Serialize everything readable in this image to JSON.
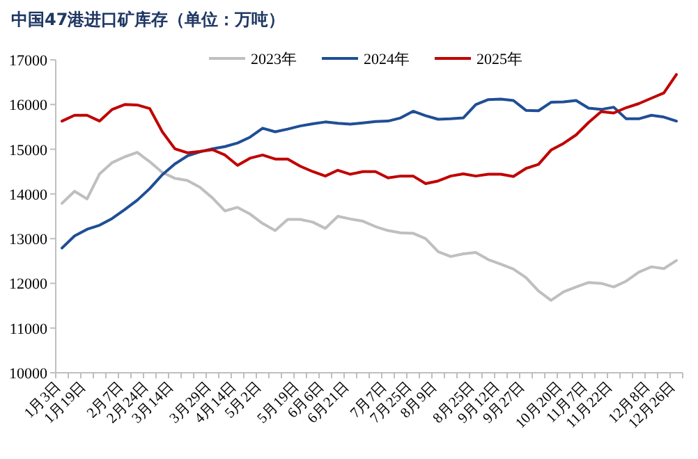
{
  "chart_data": {
    "type": "line",
    "title": "中国47港进口矿库存（单位：万吨）",
    "categories": [
      "1月3日",
      null,
      "1月19日",
      null,
      null,
      "2月7日",
      null,
      "2月24日",
      null,
      "3月14日",
      null,
      null,
      "3月29日",
      null,
      "4月14日",
      null,
      "5月2日",
      null,
      null,
      "5月19日",
      null,
      "6月6日",
      null,
      "6月21日",
      null,
      null,
      "7月7日",
      null,
      "7月25日",
      null,
      "8月9日",
      null,
      null,
      "8月25日",
      null,
      "9月12日",
      null,
      "9月27日",
      null,
      null,
      "10月20日",
      null,
      "11月7日",
      null,
      "11月22日",
      null,
      null,
      "12月8日",
      null,
      "12月26日"
    ],
    "series": [
      {
        "name": "2023年",
        "color": "#bfbfbf",
        "values": [
          13790,
          14060,
          13890,
          14450,
          14700,
          14830,
          14930,
          14720,
          14480,
          14350,
          14300,
          14150,
          13910,
          13620,
          13700,
          13550,
          13340,
          13180,
          13430,
          13430,
          13370,
          13230,
          13500,
          13440,
          13390,
          13270,
          13180,
          13130,
          13120,
          13000,
          12710,
          12600,
          12660,
          12690,
          12530,
          12430,
          12320,
          12130,
          11830,
          11620,
          11810,
          11920,
          12020,
          12000,
          11920,
          12050,
          12250,
          12370,
          12330,
          12510
        ]
      },
      {
        "name": "2024年",
        "color": "#1f4e96",
        "values": [
          12790,
          13060,
          13210,
          13300,
          13450,
          13650,
          13860,
          14120,
          14430,
          14670,
          14850,
          14940,
          15010,
          15060,
          15140,
          15270,
          15470,
          15390,
          15450,
          15520,
          15570,
          15610,
          15580,
          15560,
          15590,
          15620,
          15630,
          15700,
          15850,
          15750,
          15670,
          15680,
          15700,
          16000,
          16110,
          16120,
          16090,
          15870,
          15860,
          16050,
          16060,
          16090,
          15920,
          15890,
          15940,
          15680,
          15680,
          15760,
          15720,
          15630
        ]
      },
      {
        "name": "2025年",
        "color": "#c00000",
        "values": [
          15630,
          15760,
          15760,
          15630,
          15890,
          16000,
          15990,
          15910,
          15390,
          15010,
          14920,
          14950,
          14990,
          14870,
          14640,
          14800,
          14870,
          14780,
          14780,
          14620,
          14500,
          14400,
          14530,
          14440,
          14500,
          14500,
          14360,
          14400,
          14400,
          14230,
          14290,
          14400,
          14450,
          14400,
          14440,
          14440,
          14390,
          14570,
          14660,
          14980,
          15130,
          15320,
          15600,
          15840,
          15810,
          15930,
          16020,
          16140,
          16260,
          16670
        ]
      }
    ],
    "ylim": [
      10000,
      17000
    ],
    "yticks": [
      10000,
      11000,
      12000,
      13000,
      14000,
      15000,
      16000,
      17000
    ],
    "grid": false,
    "legend": "top",
    "marker": "none",
    "line_style": "solid"
  }
}
